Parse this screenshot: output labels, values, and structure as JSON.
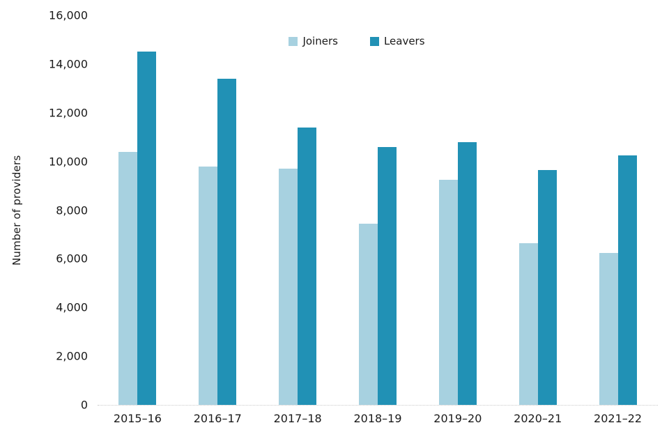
{
  "chart_data": {
    "type": "bar",
    "title": "",
    "xlabel": "",
    "ylabel": "Number of providers",
    "categories": [
      "2015–16",
      "2016–17",
      "2017–18",
      "2018–19",
      "2019–20",
      "2020–21",
      "2021–22"
    ],
    "series": [
      {
        "name": "Joiners",
        "color": "#a7d1e0",
        "values": [
          10400,
          9800,
          9700,
          7450,
          9250,
          6650,
          6250
        ]
      },
      {
        "name": "Leavers",
        "color": "#2191b5",
        "values": [
          14500,
          13400,
          11400,
          10600,
          10800,
          9650,
          10250
        ]
      }
    ],
    "ylim": [
      0,
      16000
    ],
    "y_tick_step": 2000,
    "y_tick_labels": [
      "0",
      "2,000",
      "4,000",
      "6,000",
      "8,000",
      "10,000",
      "12,000",
      "14,000",
      "16,000"
    ],
    "grid": false,
    "legend_position": "top-center",
    "axis_line_color": "#c9c9c9",
    "text_color": "#1a1a1a"
  }
}
